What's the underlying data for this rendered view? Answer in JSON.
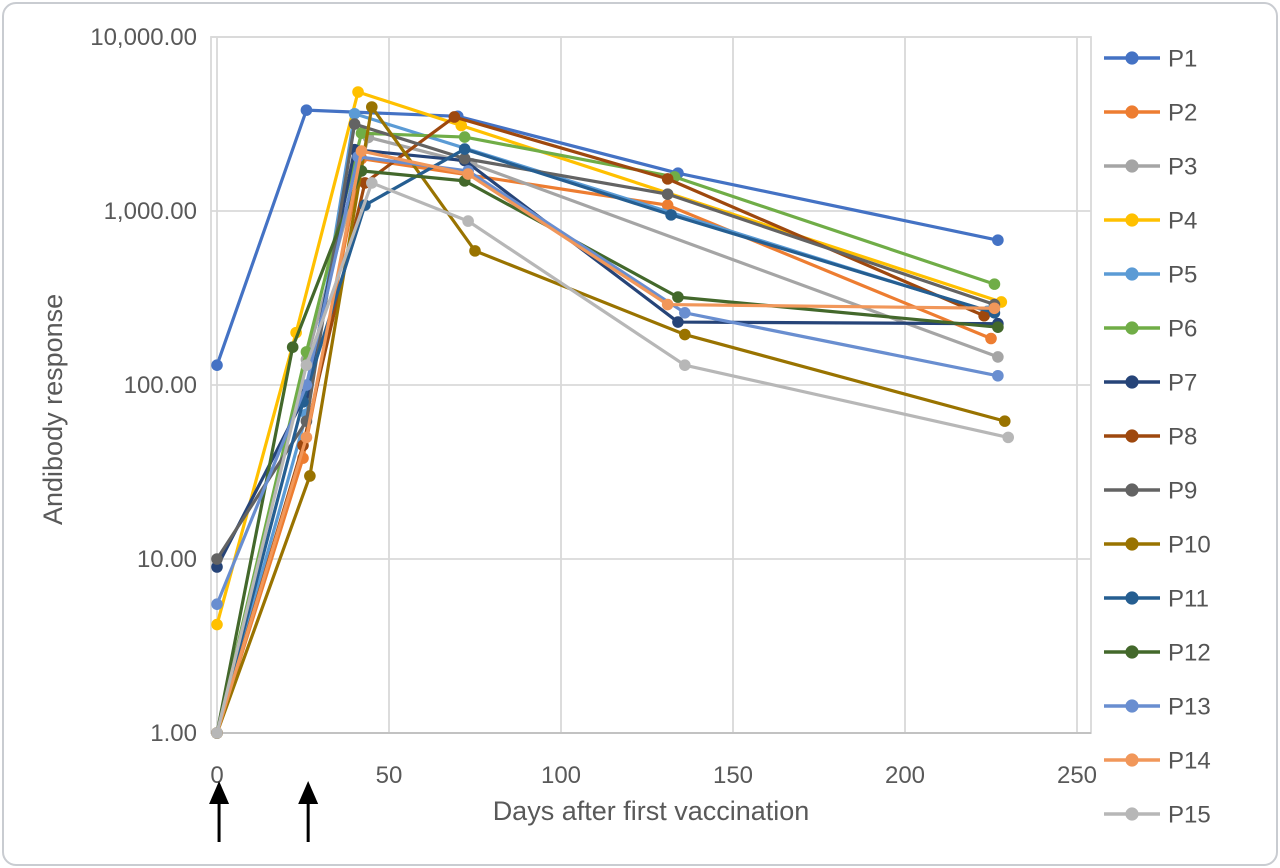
{
  "chart_data": {
    "type": "line",
    "title": "",
    "x_label": "Days after first vaccination",
    "y_label": "Andibody response",
    "y_scale": "log10",
    "xlim": [
      -2,
      254
    ],
    "ylim": [
      1,
      10000
    ],
    "grid": true,
    "legend_position": "right",
    "x_ticks": [
      0,
      50,
      100,
      150,
      200,
      250
    ],
    "y_ticks": [
      {
        "value": 1,
        "label": "1.00"
      },
      {
        "value": 10,
        "label": "10.00"
      },
      {
        "value": 100,
        "label": "100.00"
      },
      {
        "value": 1000,
        "label": "1,000.00"
      },
      {
        "value": 10000,
        "label": "10,000.00"
      }
    ],
    "annotations": {
      "vaccination_arrow_days": [
        0.6,
        26.5
      ],
      "arrow_color": "#000000",
      "meaning": "up-arrows below axis marking vaccination time points"
    },
    "layout": {
      "background": "#FFFFFF",
      "grid_color": "#D9D9D9",
      "axis_line_color": "#BFBFBF",
      "text_color": "#595959",
      "card_border_color": "#C9CCD1",
      "marker": "circle"
    },
    "series": [
      {
        "name": "P1",
        "color": "#4472C4",
        "points": [
          [
            0,
            130
          ],
          [
            26,
            3800
          ],
          [
            70,
            3500
          ],
          [
            134,
            1650
          ],
          [
            227,
            680
          ]
        ]
      },
      {
        "name": "P2",
        "color": "#ED7D31",
        "points": [
          [
            0,
            1
          ],
          [
            25,
            38
          ],
          [
            42,
            2000
          ],
          [
            131,
            1080
          ],
          [
            225,
            185
          ]
        ]
      },
      {
        "name": "P3",
        "color": "#A5A5A5",
        "points": [
          [
            0,
            1
          ],
          [
            26,
            140
          ],
          [
            44,
            2650
          ],
          [
            74,
            1870
          ],
          [
            227,
            145
          ]
        ]
      },
      {
        "name": "P4",
        "color": "#FFC000",
        "points": [
          [
            0,
            4.2
          ],
          [
            23,
            200
          ],
          [
            41,
            4830
          ],
          [
            71,
            3100
          ],
          [
            228,
            300
          ]
        ]
      },
      {
        "name": "P5",
        "color": "#5B9BD5",
        "points": [
          [
            0,
            1
          ],
          [
            26,
            68
          ],
          [
            40,
            3620
          ],
          [
            224,
            265
          ]
        ]
      },
      {
        "name": "P6",
        "color": "#70AD47",
        "points": [
          [
            0,
            1
          ],
          [
            26,
            155
          ],
          [
            42,
            2800
          ],
          [
            72,
            2660
          ],
          [
            133,
            1570
          ],
          [
            226,
            380
          ]
        ]
      },
      {
        "name": "P7",
        "color": "#264478",
        "points": [
          [
            0,
            9
          ],
          [
            26,
            90
          ],
          [
            40,
            2250
          ],
          [
            72,
            1950
          ],
          [
            134,
            230
          ],
          [
            227,
            225
          ]
        ]
      },
      {
        "name": "P8",
        "color": "#9E480E",
        "points": [
          [
            0,
            1
          ],
          [
            25,
            45
          ],
          [
            43,
            1450
          ],
          [
            69,
            3470
          ],
          [
            131,
            1530
          ],
          [
            223,
            250
          ]
        ]
      },
      {
        "name": "P9",
        "color": "#636363",
        "points": [
          [
            0,
            10
          ],
          [
            26,
            62
          ],
          [
            40,
            3160
          ],
          [
            72,
            2000
          ],
          [
            131,
            1250
          ],
          [
            226,
            290
          ]
        ]
      },
      {
        "name": "P10",
        "color": "#997300",
        "points": [
          [
            0,
            1
          ],
          [
            27,
            30
          ],
          [
            45,
            3960
          ],
          [
            75,
            590
          ],
          [
            136,
            195
          ],
          [
            229,
            62
          ]
        ]
      },
      {
        "name": "P11",
        "color": "#255E91",
        "points": [
          [
            0,
            1
          ],
          [
            25,
            80
          ],
          [
            43,
            1080
          ],
          [
            72,
            2270
          ],
          [
            132,
            950
          ],
          [
            226,
            260
          ]
        ]
      },
      {
        "name": "P12",
        "color": "#43682B",
        "points": [
          [
            0,
            1
          ],
          [
            22,
            165
          ],
          [
            42,
            1700
          ],
          [
            72,
            1490
          ],
          [
            134,
            320
          ],
          [
            227,
            215
          ]
        ]
      },
      {
        "name": "P13",
        "color": "#698ED0",
        "points": [
          [
            0,
            5.5
          ],
          [
            26,
            100
          ],
          [
            41,
            2050
          ],
          [
            73,
            1700
          ],
          [
            136,
            260
          ],
          [
            227,
            113
          ]
        ]
      },
      {
        "name": "P14",
        "color": "#F1975A",
        "points": [
          [
            0,
            1
          ],
          [
            26,
            50
          ],
          [
            42,
            2210
          ],
          [
            73,
            1630
          ],
          [
            131,
            290
          ],
          [
            226,
            276
          ]
        ]
      },
      {
        "name": "P15",
        "color": "#B7B7B7",
        "points": [
          [
            0,
            1
          ],
          [
            26,
            130
          ],
          [
            45,
            1450
          ],
          [
            73,
            875
          ],
          [
            136,
            130
          ],
          [
            230,
            50
          ]
        ]
      }
    ]
  }
}
